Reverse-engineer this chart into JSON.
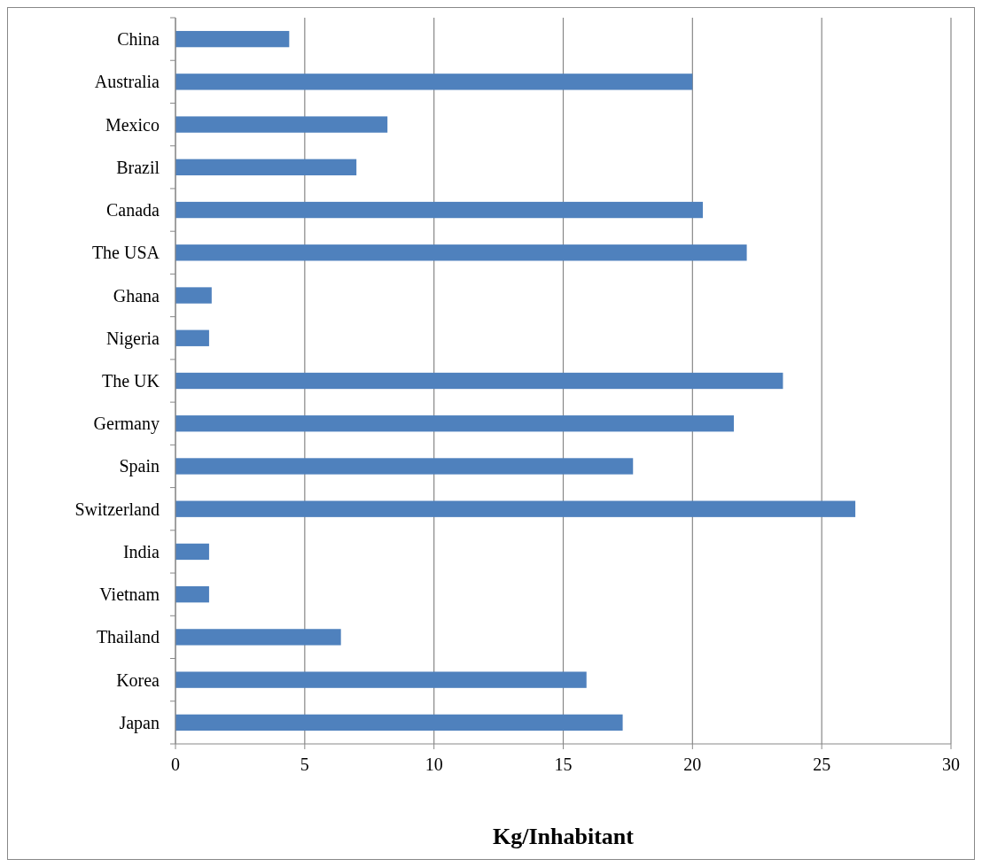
{
  "chart_data": {
    "type": "bar",
    "orientation": "horizontal",
    "xlabel": "Kg/Inhabitant",
    "categories": [
      "China",
      "Australia",
      "Mexico",
      "Brazil",
      "Canada",
      "The USA",
      "Ghana",
      "Nigeria",
      "The UK",
      "Germany",
      "Spain",
      "Switzerland",
      "India",
      "Vietnam",
      "Thailand",
      "Korea",
      "Japan"
    ],
    "values": [
      4.4,
      20.0,
      8.2,
      7.0,
      20.4,
      22.1,
      1.4,
      1.3,
      23.5,
      21.6,
      17.7,
      26.3,
      1.3,
      1.3,
      6.4,
      15.9,
      17.3
    ],
    "color": "#4f81bd",
    "xlim": [
      0,
      30
    ],
    "xticks": [
      0,
      5,
      10,
      15,
      20,
      25,
      30
    ],
    "grid": "x"
  }
}
